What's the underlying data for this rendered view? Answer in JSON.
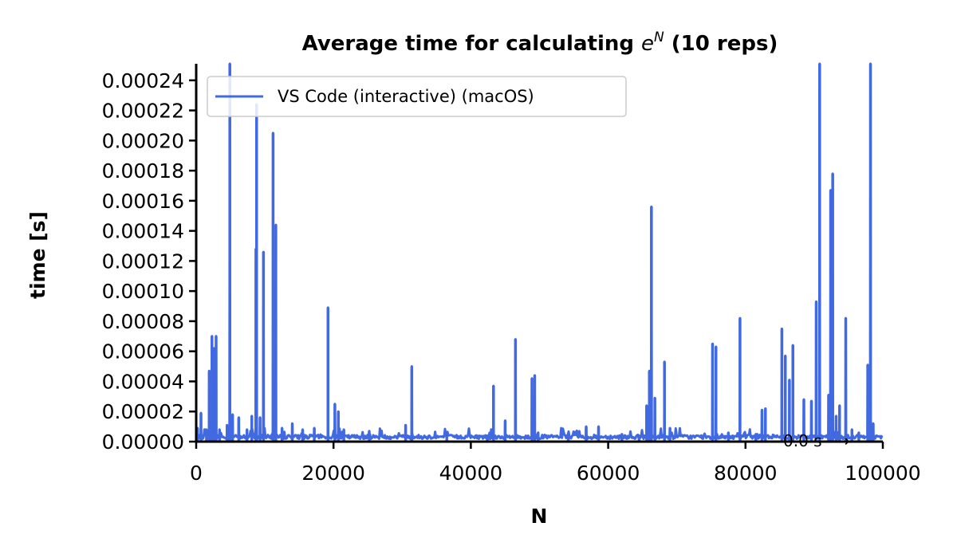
{
  "chart_data": {
    "type": "line",
    "title_prefix": "Average time for calculating ",
    "title_base": "e",
    "title_exponent": "N",
    "title_suffix": " (10 reps)",
    "xlabel": "N",
    "ylabel": "time [s]",
    "xlim": [
      0,
      100000
    ],
    "ylim": [
      0,
      0.000251
    ],
    "x_ticks": [
      0,
      20000,
      40000,
      60000,
      80000,
      100000
    ],
    "x_tick_labels": [
      "0",
      "20000",
      "40000",
      "60000",
      "80000",
      "100000"
    ],
    "y_ticks": [
      0,
      2e-05,
      4e-05,
      6e-05,
      8e-05,
      0.0001,
      0.00012,
      0.00014,
      0.00016,
      0.00018,
      0.0002,
      0.00022,
      0.00024
    ],
    "y_tick_labels": [
      "0.00000",
      "0.00002",
      "0.00004",
      "0.00006",
      "0.00008",
      "0.00010",
      "0.00012",
      "0.00014",
      "0.00016",
      "0.00018",
      "0.00020",
      "0.00022",
      "0.00024"
    ],
    "grid": false,
    "legend_position": "top-left",
    "annotation": "0.0 s ⟶",
    "series": [
      {
        "name": "VS Code (interactive) (macOS)",
        "color": "#4169E1",
        "baseline": 3e-06,
        "spikes": [
          [
            200,
            9e-06
          ],
          [
            700,
            1.9e-05
          ],
          [
            1500,
            8e-06
          ],
          [
            1900,
            4.7e-05
          ],
          [
            2300,
            7e-05
          ],
          [
            2600,
            6.2e-05
          ],
          [
            2900,
            7e-05
          ],
          [
            3400,
            8e-06
          ],
          [
            4500,
            1.1e-05
          ],
          [
            4900,
            0.000251
          ],
          [
            5300,
            1.8e-05
          ],
          [
            6200,
            1.6e-05
          ],
          [
            7400,
            8e-06
          ],
          [
            8100,
            1.7e-05
          ],
          [
            8700,
            0.000128
          ],
          [
            8800,
            0.000224
          ],
          [
            9300,
            1.6e-05
          ],
          [
            9800,
            0.000126
          ],
          [
            11200,
            0.000205
          ],
          [
            11600,
            0.000144
          ],
          [
            12500,
            9e-06
          ],
          [
            14000,
            1.2e-05
          ],
          [
            15500,
            8e-06
          ],
          [
            17200,
            9e-06
          ],
          [
            19200,
            8.9e-05
          ],
          [
            20200,
            2.5e-05
          ],
          [
            20700,
            2e-05
          ],
          [
            21500,
            8e-06
          ],
          [
            25200,
            7e-06
          ],
          [
            30500,
            1.1e-05
          ],
          [
            31400,
            5e-05
          ],
          [
            36500,
            5e-06
          ],
          [
            42400,
            4e-06
          ],
          [
            43300,
            3.7e-05
          ],
          [
            45000,
            1.4e-05
          ],
          [
            46500,
            6.8e-05
          ],
          [
            48900,
            4.2e-05
          ],
          [
            49300,
            4.4e-05
          ],
          [
            49800,
            6e-06
          ],
          [
            54200,
            6e-06
          ],
          [
            56800,
            1e-05
          ],
          [
            58600,
            1e-05
          ],
          [
            62000,
            5e-06
          ],
          [
            64500,
            4e-06
          ],
          [
            65600,
            2.4e-05
          ],
          [
            66000,
            4.7e-05
          ],
          [
            66300,
            0.000156
          ],
          [
            66800,
            2.9e-05
          ],
          [
            68200,
            5.3e-05
          ],
          [
            69000,
            9e-06
          ],
          [
            75200,
            6.5e-05
          ],
          [
            75700,
            6.3e-05
          ],
          [
            77500,
            6e-06
          ],
          [
            79200,
            8.2e-05
          ],
          [
            81500,
            5e-06
          ],
          [
            82400,
            2.1e-05
          ],
          [
            82900,
            2.2e-05
          ],
          [
            85300,
            7.5e-05
          ],
          [
            85800,
            5.7e-05
          ],
          [
            86400,
            4.1e-05
          ],
          [
            86900,
            6.4e-05
          ],
          [
            88500,
            2.8e-05
          ],
          [
            89600,
            2.7e-05
          ],
          [
            90300,
            9.3e-05
          ],
          [
            90800,
            0.000251
          ],
          [
            92100,
            3.1e-05
          ],
          [
            92400,
            0.000167
          ],
          [
            92700,
            0.000178
          ],
          [
            93200,
            1.7e-05
          ],
          [
            93700,
            2.4e-05
          ],
          [
            94600,
            8.2e-05
          ],
          [
            95500,
            8e-06
          ],
          [
            96500,
            6e-06
          ],
          [
            97800,
            5.1e-05
          ],
          [
            98200,
            0.000251
          ],
          [
            98600,
            1.2e-05
          ]
        ]
      }
    ]
  }
}
